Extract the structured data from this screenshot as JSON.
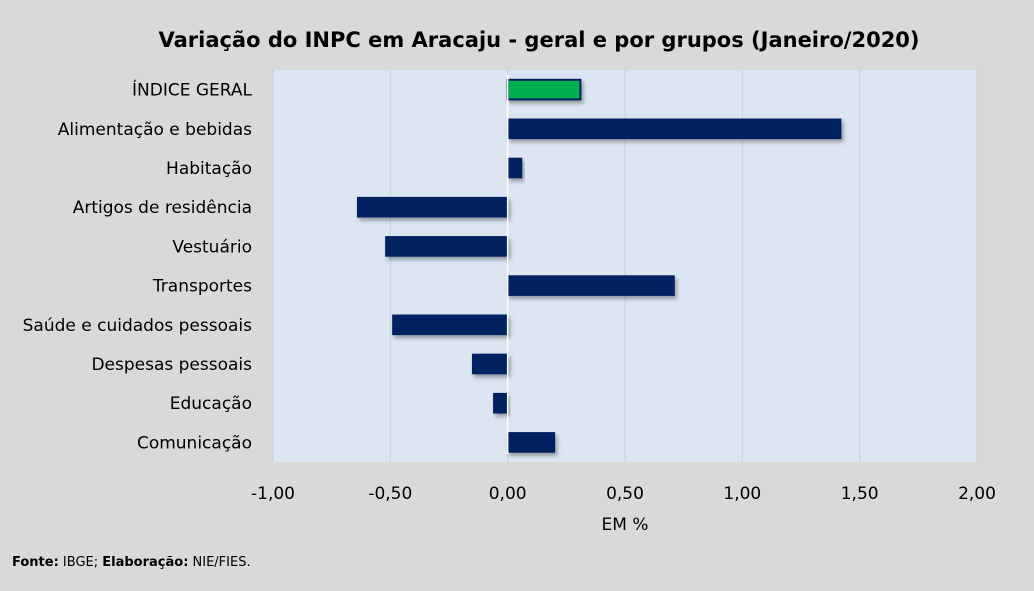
{
  "chart_data": {
    "type": "bar",
    "orientation": "horizontal",
    "title": "Variação do INPC em Aracaju - geral e por grupos (Janeiro/2020)",
    "xlabel": "EM %",
    "ylabel": "",
    "xlim": [
      -1.0,
      2.0
    ],
    "xticks": [
      "-1,00",
      "-0,50",
      "0,00",
      "0,50",
      "1,00",
      "1,50",
      "2,00"
    ],
    "grid": true,
    "categories": [
      "ÍNDICE GERAL",
      "Alimentação e bebidas",
      "Habitação",
      "Artigos de residência",
      "Vestuário",
      "Transportes",
      "Saúde e cuidados pessoais",
      "Despesas pessoais",
      "Educação",
      "Comunicação"
    ],
    "values": [
      0.31,
      1.42,
      0.06,
      -0.64,
      -0.52,
      0.71,
      -0.49,
      -0.15,
      -0.06,
      0.2
    ],
    "colors": {
      "highlight": "#00b050",
      "bar": "#002060",
      "plot_bg": "#dce6f2",
      "page_bg": "#d9d9d9"
    }
  },
  "footer": {
    "source_label": "Fonte:",
    "source": " IBGE; ",
    "elab_label": "Elaboração:",
    "elab": " NIE/FIES."
  }
}
